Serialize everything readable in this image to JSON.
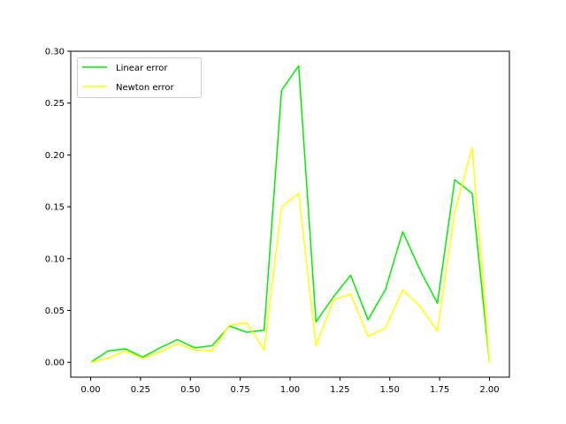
{
  "chart_data": {
    "type": "line",
    "title": "",
    "xlabel": "",
    "ylabel": "",
    "xlim": [
      -0.1,
      2.1
    ],
    "ylim": [
      -0.0143,
      0.3
    ],
    "grid": false,
    "legend_position": "top-left",
    "x": [
      0.0,
      0.087,
      0.174,
      0.261,
      0.348,
      0.435,
      0.522,
      0.609,
      0.696,
      0.783,
      0.87,
      0.957,
      1.043,
      1.13,
      1.217,
      1.304,
      1.391,
      1.478,
      1.565,
      1.652,
      1.739,
      1.826,
      1.913,
      2.0
    ],
    "series": [
      {
        "name": "Linear error",
        "color": "#00ee00",
        "values": [
          0.0,
          0.011,
          0.013,
          0.005,
          0.014,
          0.022,
          0.014,
          0.016,
          0.035,
          0.029,
          0.031,
          0.262,
          0.286,
          0.039,
          0.063,
          0.084,
          0.041,
          0.07,
          0.126,
          0.089,
          0.057,
          0.176,
          0.163,
          0.0
        ]
      },
      {
        "name": "Newton error",
        "color": "#ffff00",
        "values": [
          0.0,
          0.004,
          0.011,
          0.004,
          0.01,
          0.018,
          0.012,
          0.011,
          0.036,
          0.038,
          0.012,
          0.15,
          0.163,
          0.016,
          0.06,
          0.066,
          0.025,
          0.033,
          0.07,
          0.054,
          0.03,
          0.145,
          0.207,
          0.0
        ]
      }
    ],
    "xticks": [
      0.0,
      0.25,
      0.5,
      0.75,
      1.0,
      1.25,
      1.5,
      1.75,
      2.0
    ],
    "xtick_labels": [
      "0.00",
      "0.25",
      "0.50",
      "0.75",
      "1.00",
      "1.25",
      "1.50",
      "1.75",
      "2.00"
    ],
    "yticks": [
      0.0,
      0.05,
      0.1,
      0.15,
      0.2,
      0.25,
      0.3
    ],
    "ytick_labels": [
      "0.00",
      "0.05",
      "0.10",
      "0.15",
      "0.20",
      "0.25",
      "0.30"
    ]
  }
}
